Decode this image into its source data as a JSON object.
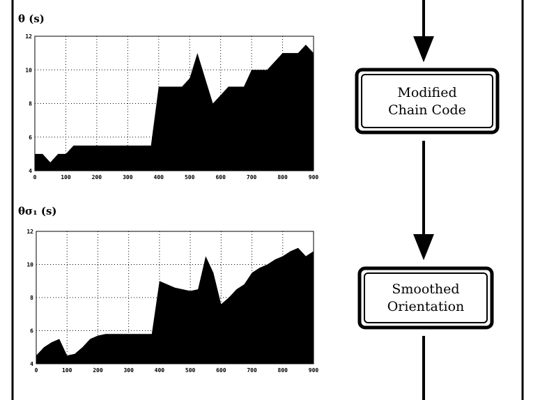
{
  "chart_data": [
    {
      "type": "area",
      "title": "θ (s)",
      "color": "#000000",
      "grid": true,
      "x": [
        0,
        25,
        50,
        75,
        100,
        125,
        150,
        175,
        200,
        225,
        250,
        275,
        300,
        325,
        350,
        375,
        400,
        425,
        450,
        475,
        500,
        525,
        550,
        575,
        600,
        625,
        650,
        675,
        700,
        725,
        750,
        775,
        800,
        825,
        850,
        875,
        900
      ],
      "values": [
        5,
        5,
        4.5,
        5,
        5,
        5.5,
        5.5,
        5.5,
        5.5,
        5.5,
        5.5,
        5.5,
        5.5,
        5.5,
        5.5,
        5.5,
        9,
        9,
        9,
        9,
        9.5,
        11,
        9.5,
        8,
        8.5,
        9,
        9,
        9,
        10,
        10,
        10,
        10.5,
        11,
        11,
        11,
        11.5,
        11
      ],
      "xlim": [
        0,
        900
      ],
      "ylim": [
        4,
        12
      ],
      "xticks": [
        0,
        100,
        200,
        300,
        400,
        500,
        600,
        700,
        800,
        900
      ],
      "yticks": [
        4,
        6,
        8,
        10,
        12
      ]
    },
    {
      "type": "area",
      "title": "θσ₁ (s)",
      "color": "#000000",
      "grid": true,
      "x": [
        0,
        25,
        50,
        75,
        100,
        125,
        150,
        175,
        200,
        225,
        250,
        275,
        300,
        325,
        350,
        375,
        400,
        425,
        450,
        475,
        500,
        525,
        550,
        575,
        600,
        625,
        650,
        675,
        700,
        725,
        750,
        775,
        800,
        825,
        850,
        875,
        900
      ],
      "values": [
        4.5,
        5,
        5.3,
        5.5,
        4.5,
        4.6,
        5,
        5.5,
        5.7,
        5.8,
        5.8,
        5.8,
        5.8,
        5.8,
        5.8,
        5.8,
        9,
        8.8,
        8.6,
        8.5,
        8.4,
        8.5,
        10.5,
        9.5,
        7.6,
        8,
        8.5,
        8.8,
        9.5,
        9.8,
        10,
        10.3,
        10.5,
        10.8,
        11,
        10.5,
        10.8
      ],
      "xlim": [
        0,
        900
      ],
      "ylim": [
        4,
        12
      ],
      "xticks": [
        0,
        100,
        200,
        300,
        400,
        500,
        600,
        700,
        800,
        900
      ],
      "yticks": [
        4,
        6,
        8,
        10,
        12
      ]
    }
  ],
  "diagram": {
    "boxes": [
      {
        "lines": [
          "Modified",
          "Chain Code"
        ]
      },
      {
        "lines": [
          "Smoothed",
          "Orientation"
        ]
      }
    ]
  }
}
